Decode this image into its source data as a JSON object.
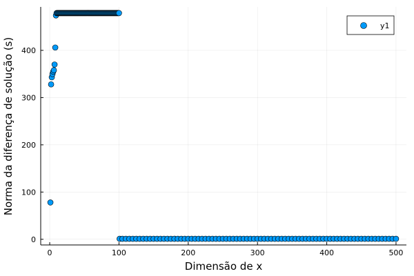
{
  "chart_data": {
    "type": "scatter",
    "title": "",
    "xlabel": "Dimensão de x",
    "ylabel": "Norma da diferença de solução (s)",
    "xlim": [
      -13,
      515
    ],
    "ylim": [
      -12,
      492
    ],
    "xticks": [
      0,
      100,
      200,
      300,
      400,
      500
    ],
    "yticks": [
      0,
      100,
      200,
      300,
      400
    ],
    "grid": true,
    "legend_position": "top-right",
    "marker_color": "#009af9",
    "series": [
      {
        "name": "y1",
        "points": [
          [
            1,
            78
          ],
          [
            2,
            328
          ],
          [
            3,
            343
          ],
          [
            4,
            350
          ],
          [
            5,
            355
          ],
          [
            6,
            358
          ],
          [
            7,
            370
          ],
          [
            8,
            406
          ],
          [
            9,
            474
          ],
          [
            10,
            479
          ],
          [
            11,
            479
          ],
          [
            12,
            479
          ],
          [
            13,
            479
          ],
          [
            14,
            479
          ],
          [
            15,
            479
          ],
          [
            16,
            479
          ],
          [
            17,
            479
          ],
          [
            18,
            479
          ],
          [
            19,
            479
          ],
          [
            20,
            479
          ],
          [
            21,
            479
          ],
          [
            22,
            479
          ],
          [
            23,
            479
          ],
          [
            24,
            479
          ],
          [
            25,
            479
          ],
          [
            26,
            479
          ],
          [
            27,
            479
          ],
          [
            28,
            479
          ],
          [
            29,
            479
          ],
          [
            30,
            479
          ],
          [
            31,
            479
          ],
          [
            32,
            479
          ],
          [
            33,
            479
          ],
          [
            34,
            479
          ],
          [
            35,
            479
          ],
          [
            36,
            479
          ],
          [
            37,
            479
          ],
          [
            38,
            479
          ],
          [
            39,
            479
          ],
          [
            40,
            479
          ],
          [
            41,
            479
          ],
          [
            42,
            479
          ],
          [
            43,
            479
          ],
          [
            44,
            479
          ],
          [
            45,
            479
          ],
          [
            46,
            479
          ],
          [
            47,
            479
          ],
          [
            48,
            479
          ],
          [
            49,
            479
          ],
          [
            50,
            479
          ],
          [
            51,
            479
          ],
          [
            52,
            479
          ],
          [
            53,
            479
          ],
          [
            54,
            479
          ],
          [
            55,
            479
          ],
          [
            56,
            479
          ],
          [
            57,
            479
          ],
          [
            58,
            479
          ],
          [
            59,
            479
          ],
          [
            60,
            479
          ],
          [
            61,
            479
          ],
          [
            62,
            479
          ],
          [
            63,
            479
          ],
          [
            64,
            479
          ],
          [
            65,
            479
          ],
          [
            66,
            479
          ],
          [
            67,
            479
          ],
          [
            68,
            479
          ],
          [
            69,
            479
          ],
          [
            70,
            479
          ],
          [
            71,
            479
          ],
          [
            72,
            479
          ],
          [
            73,
            479
          ],
          [
            74,
            479
          ],
          [
            75,
            479
          ],
          [
            76,
            479
          ],
          [
            77,
            479
          ],
          [
            78,
            479
          ],
          [
            79,
            479
          ],
          [
            80,
            479
          ],
          [
            81,
            479
          ],
          [
            82,
            479
          ],
          [
            83,
            479
          ],
          [
            84,
            479
          ],
          [
            85,
            479
          ],
          [
            86,
            479
          ],
          [
            87,
            479
          ],
          [
            88,
            479
          ],
          [
            89,
            479
          ],
          [
            90,
            479
          ],
          [
            91,
            479
          ],
          [
            92,
            479
          ],
          [
            93,
            479
          ],
          [
            94,
            479
          ],
          [
            95,
            479
          ],
          [
            96,
            479
          ],
          [
            97,
            479
          ],
          [
            98,
            479
          ],
          [
            99,
            479
          ],
          [
            100,
            479
          ],
          [
            101,
            1
          ],
          [
            105,
            1
          ],
          [
            110,
            1
          ],
          [
            115,
            1
          ],
          [
            120,
            1
          ],
          [
            125,
            1
          ],
          [
            130,
            1
          ],
          [
            135,
            1
          ],
          [
            140,
            1
          ],
          [
            145,
            1
          ],
          [
            150,
            1
          ],
          [
            155,
            1
          ],
          [
            160,
            1
          ],
          [
            165,
            1
          ],
          [
            170,
            1
          ],
          [
            175,
            1
          ],
          [
            180,
            1
          ],
          [
            185,
            1
          ],
          [
            190,
            1
          ],
          [
            195,
            1
          ],
          [
            200,
            1
          ],
          [
            205,
            1
          ],
          [
            210,
            1
          ],
          [
            215,
            1
          ],
          [
            220,
            1
          ],
          [
            225,
            1
          ],
          [
            230,
            1
          ],
          [
            235,
            1
          ],
          [
            240,
            1
          ],
          [
            245,
            1
          ],
          [
            250,
            1
          ],
          [
            255,
            1
          ],
          [
            260,
            1
          ],
          [
            265,
            1
          ],
          [
            270,
            1
          ],
          [
            275,
            1
          ],
          [
            280,
            1
          ],
          [
            285,
            1
          ],
          [
            290,
            1
          ],
          [
            295,
            1
          ],
          [
            300,
            1
          ],
          [
            305,
            1
          ],
          [
            310,
            1
          ],
          [
            315,
            1
          ],
          [
            320,
            1
          ],
          [
            325,
            1
          ],
          [
            330,
            1
          ],
          [
            335,
            1
          ],
          [
            340,
            1
          ],
          [
            345,
            1
          ],
          [
            350,
            1
          ],
          [
            355,
            1
          ],
          [
            360,
            1
          ],
          [
            365,
            1
          ],
          [
            370,
            1
          ],
          [
            375,
            1
          ],
          [
            380,
            1
          ],
          [
            385,
            1
          ],
          [
            390,
            1
          ],
          [
            395,
            1
          ],
          [
            400,
            1
          ],
          [
            405,
            1
          ],
          [
            410,
            1
          ],
          [
            415,
            1
          ],
          [
            420,
            1
          ],
          [
            425,
            1
          ],
          [
            430,
            1
          ],
          [
            435,
            1
          ],
          [
            440,
            1
          ],
          [
            445,
            1
          ],
          [
            450,
            1
          ],
          [
            455,
            1
          ],
          [
            460,
            1
          ],
          [
            465,
            1
          ],
          [
            470,
            1
          ],
          [
            475,
            1
          ],
          [
            480,
            1
          ],
          [
            485,
            1
          ],
          [
            490,
            1
          ],
          [
            495,
            1
          ],
          [
            500,
            1
          ]
        ]
      }
    ]
  }
}
